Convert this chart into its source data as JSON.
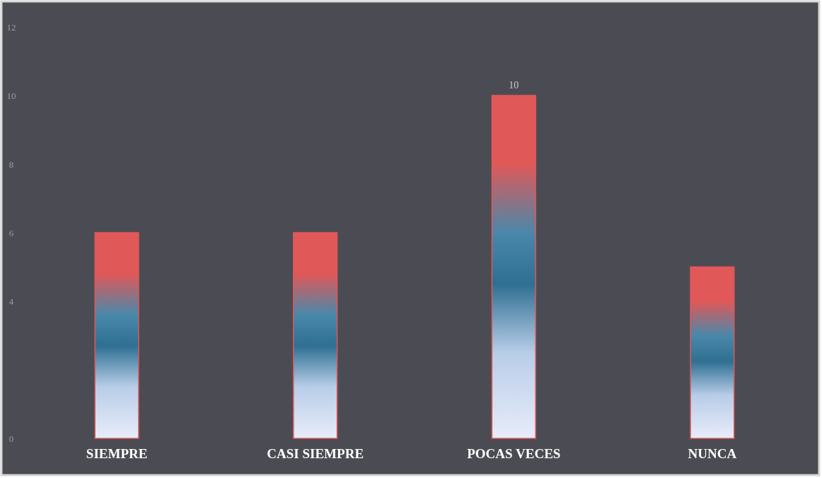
{
  "chart_data": {
    "type": "bar",
    "categories": [
      "SIEMPRE",
      "CASI SIEMPRE",
      "POCAS VECES",
      "NUNCA"
    ],
    "values": [
      6,
      6,
      10,
      5
    ],
    "color": "#e05858",
    "value_labels": [
      null,
      null,
      "10",
      null
    ],
    "ylim": [
      0,
      12
    ],
    "yticks": [
      0,
      4,
      6,
      8,
      10,
      12
    ],
    "grid": false
  }
}
